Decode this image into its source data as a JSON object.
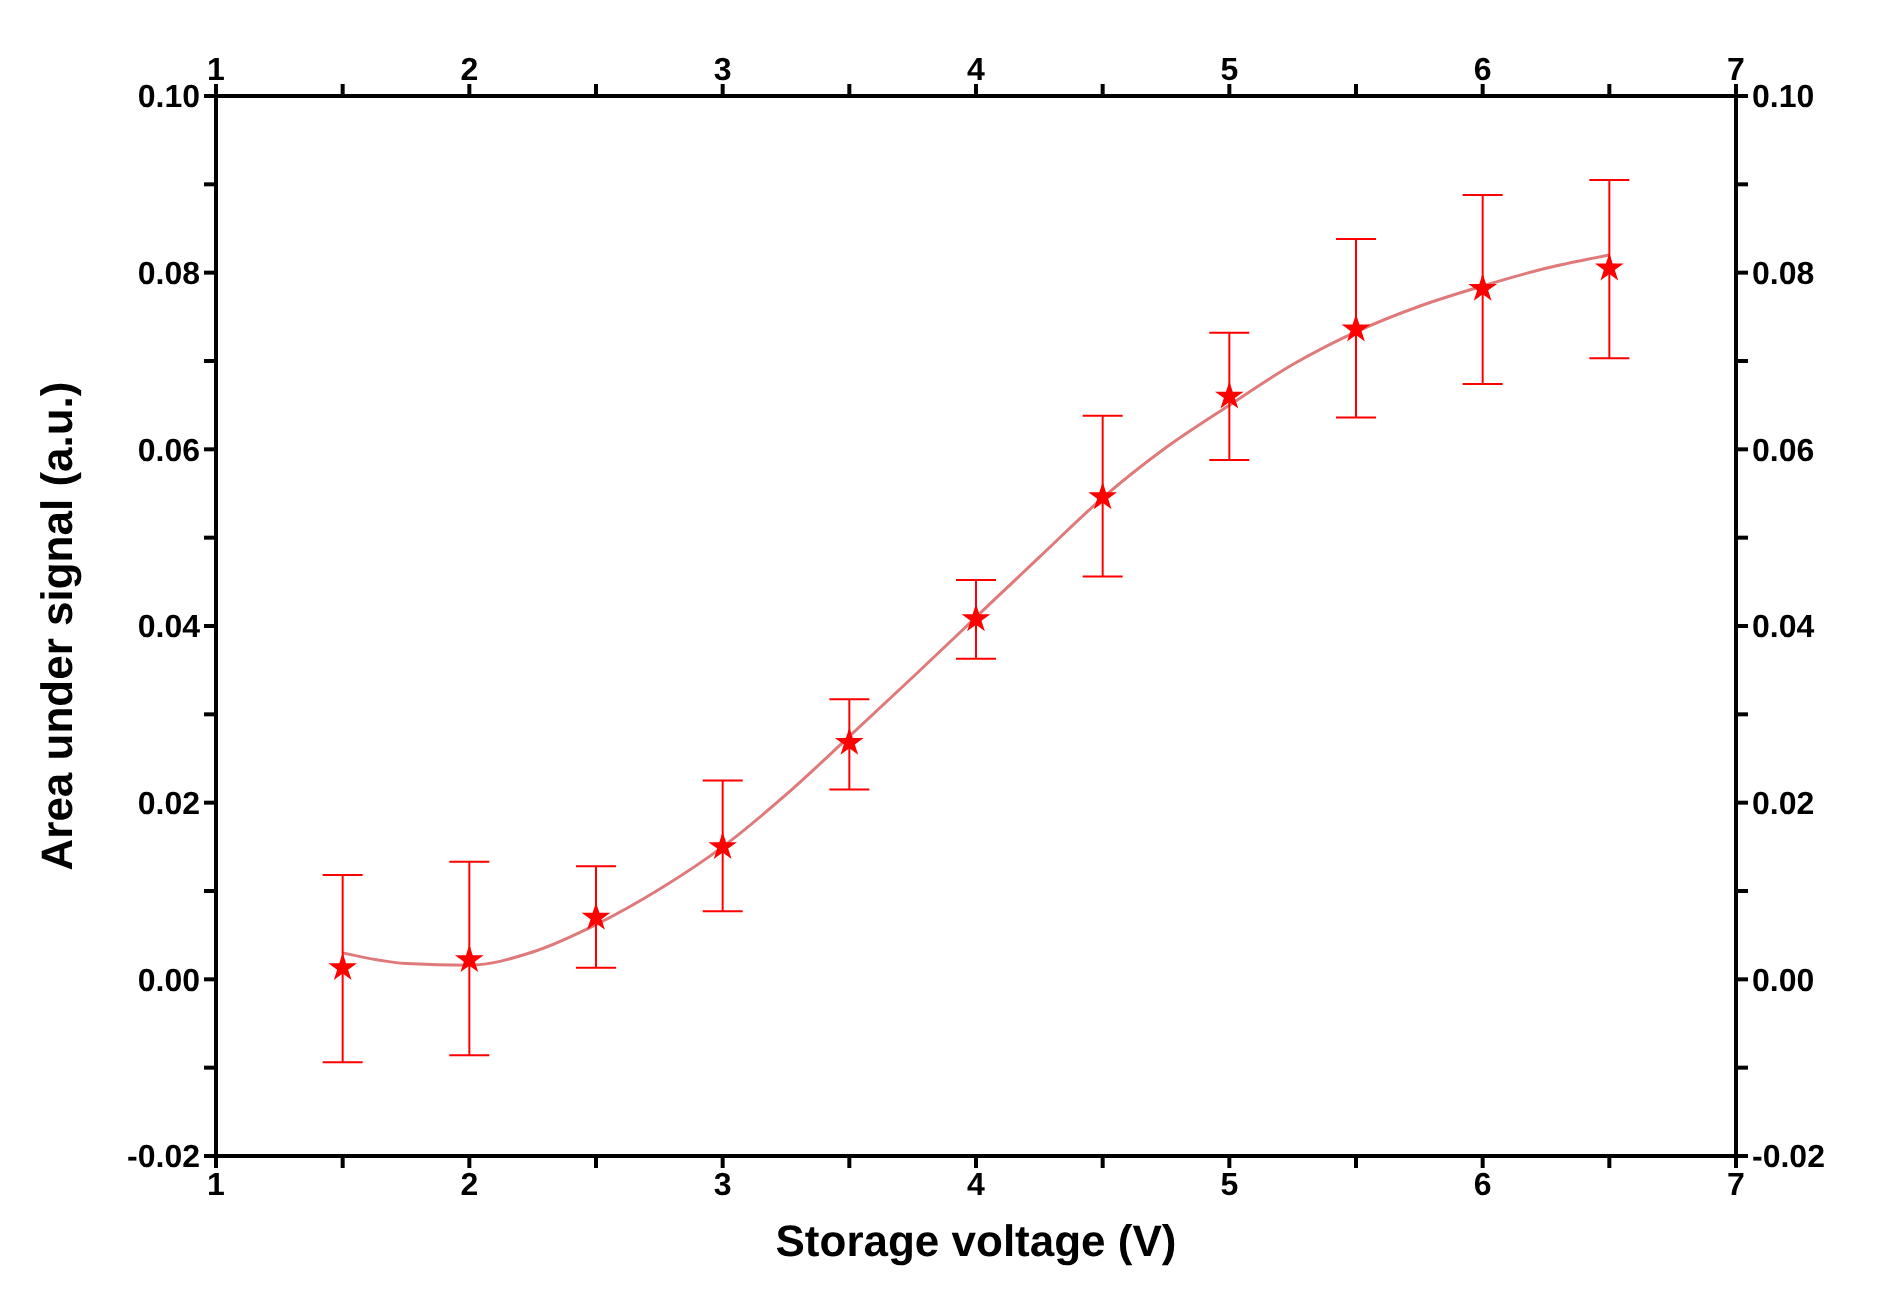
{
  "chart_data": {
    "type": "scatter",
    "xlabel": "Storage voltage (V)",
    "ylabel": "Area under signal (a.u.)",
    "xlim": [
      1,
      7
    ],
    "xticks": [
      1,
      {
        "value": 1.5,
        "label": null
      },
      2,
      {
        "value": 2.5,
        "label": null
      },
      3,
      {
        "value": 3.5,
        "label": null
      },
      4,
      {
        "value": 4.5,
        "label": null
      },
      5,
      {
        "value": 5.5,
        "label": null
      },
      6,
      {
        "value": 6.5,
        "label": null
      },
      7
    ],
    "x2lim": [
      1,
      7
    ],
    "x2ticks": [
      1,
      {
        "value": 1.5,
        "label": null
      },
      2,
      {
        "value": 2.5,
        "label": null
      },
      3,
      {
        "value": 3.5,
        "label": null
      },
      4,
      {
        "value": 4.5,
        "label": null
      },
      5,
      {
        "value": 5.5,
        "label": null
      },
      6,
      {
        "value": 6.5,
        "label": null
      },
      7
    ],
    "ylim": [
      -0.02,
      0.1
    ],
    "yticks": [
      {
        "value": -0.02,
        "label": "-0.02"
      },
      {
        "value": -0.01,
        "label": null
      },
      {
        "value": 0,
        "label": "0.00"
      },
      {
        "value": 0.01,
        "label": null
      },
      {
        "value": 0.02,
        "label": "0.02"
      },
      {
        "value": 0.03,
        "label": null
      },
      {
        "value": 0.04,
        "label": "0.04"
      },
      {
        "value": 0.05,
        "label": null
      },
      {
        "value": 0.06,
        "label": "0.06"
      },
      {
        "value": 0.07,
        "label": null
      },
      {
        "value": 0.08,
        "label": "0.08"
      },
      {
        "value": 0.09,
        "label": null
      },
      {
        "value": 0.1,
        "label": "0.10"
      }
    ],
    "y2lim": [
      -0.02,
      0.1
    ],
    "y2ticks": [
      {
        "value": -0.02,
        "label": "-0.02"
      },
      {
        "value": -0.01,
        "label": null
      },
      {
        "value": 0,
        "label": "0.00"
      },
      {
        "value": 0.01,
        "label": null
      },
      {
        "value": 0.02,
        "label": "0.02"
      },
      {
        "value": 0.03,
        "label": null
      },
      {
        "value": 0.04,
        "label": "0.04"
      },
      {
        "value": 0.05,
        "label": null
      },
      {
        "value": 0.06,
        "label": "0.06"
      },
      {
        "value": 0.07,
        "label": null
      },
      {
        "value": 0.08,
        "label": "0.08"
      },
      {
        "value": 0.09,
        "label": null
      },
      {
        "value": 0.1,
        "label": "0.10"
      }
    ],
    "grid": false,
    "series": [
      {
        "color": "#ff0000",
        "marker": "star",
        "x": [
          1.5,
          2,
          2.5,
          3,
          3.5,
          4,
          4.5,
          5,
          5.5,
          6,
          6.5
        ],
        "values": [
          0.0013,
          0.0022,
          0.007,
          0.015,
          0.0268,
          0.0408,
          0.0546,
          0.066,
          0.0736,
          0.0782,
          0.0805
        ],
        "errors": [
          [
            -0.0094,
            0.0118
          ],
          [
            -0.0086,
            0.0133
          ],
          [
            0.0013,
            0.0128
          ],
          [
            0.0077,
            0.0225
          ],
          [
            0.0215,
            0.0317
          ],
          [
            0.0363,
            0.0452
          ],
          [
            0.0456,
            0.0638
          ],
          [
            0.0588,
            0.0732
          ],
          [
            0.0636,
            0.0838
          ],
          [
            0.0674,
            0.0888
          ],
          [
            0.0703,
            0.0905
          ]
        ]
      },
      {
        "type": "line",
        "color": "#e07a7a",
        "marker": "none",
        "x": [
          1.5,
          1.75,
          2,
          2.25,
          2.5,
          2.75,
          3,
          3.25,
          3.5,
          3.75,
          4,
          4.25,
          4.5,
          4.75,
          5,
          5.25,
          5.5,
          5.75,
          6,
          6.25,
          6.5
        ],
        "values": [
          0.003,
          0.0018,
          0.0016,
          0.0031,
          0.0062,
          0.0102,
          0.015,
          0.0209,
          0.0275,
          0.0342,
          0.041,
          0.0478,
          0.0545,
          0.0602,
          0.065,
          0.0696,
          0.0733,
          0.0762,
          0.0785,
          0.0805,
          0.082
        ]
      }
    ]
  }
}
